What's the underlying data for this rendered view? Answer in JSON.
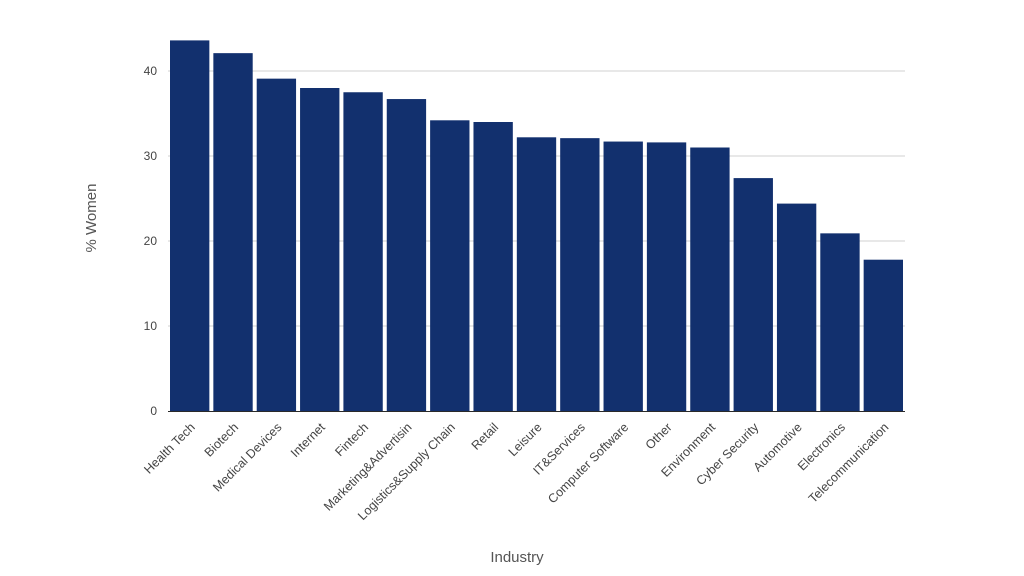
{
  "chart_data": {
    "type": "bar",
    "categories": [
      "Health Tech",
      "Biotech",
      "Medical Devices",
      "Internet",
      "Fintech",
      "Marketing&Advertisin",
      "Logistics&Supply Chain",
      "Retail",
      "Leisure",
      "IT&Services",
      "Computer Software",
      "Other",
      "Environment",
      "Cyber Security",
      "Automotive",
      "Electronics",
      "Telecommunication"
    ],
    "values": [
      43.6,
      42.1,
      39.1,
      38.0,
      37.5,
      36.7,
      34.2,
      34.0,
      32.2,
      32.1,
      31.7,
      31.6,
      31.0,
      27.4,
      24.4,
      20.9,
      17.8
    ],
    "title": "",
    "xlabel": "Industry",
    "ylabel": "% Women",
    "ylim": [
      0,
      40
    ],
    "yticks": [
      0,
      10,
      20,
      30,
      40
    ],
    "grid": true,
    "legend": "none",
    "colors": {
      "bar": "#12306e",
      "grid": "#d0d0d0",
      "baseline": "#2a2a2a"
    }
  }
}
